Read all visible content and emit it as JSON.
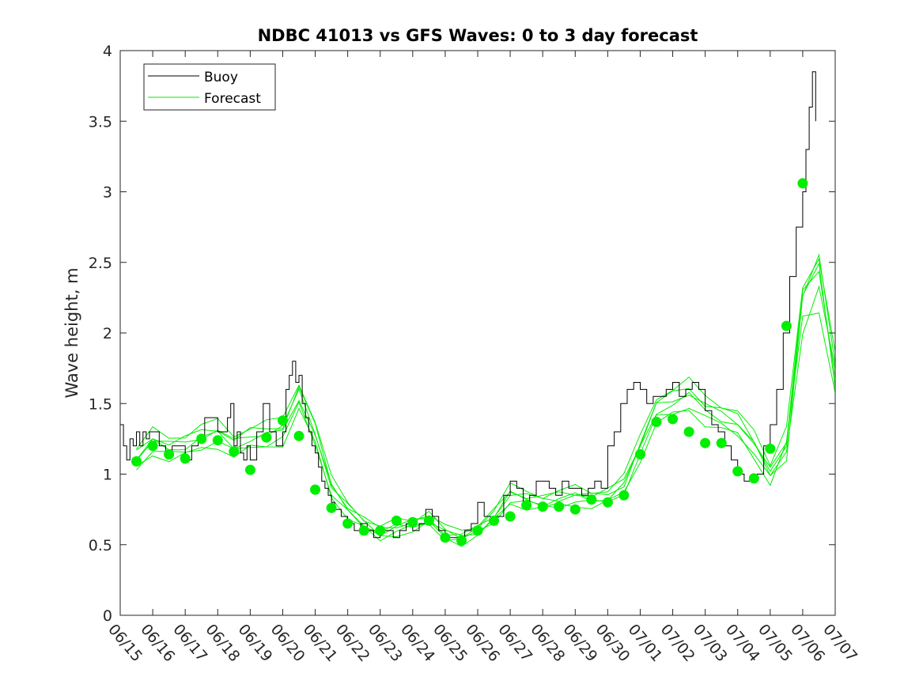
{
  "chart_data": {
    "type": "line",
    "title": "NDBC 41013 vs GFS Waves: 0 to 3 day forecast",
    "xlabel": "",
    "ylabel": "Wave height, m",
    "xlim": [
      0,
      22
    ],
    "ylim": [
      0,
      4
    ],
    "x_tick_labels": [
      "06/15",
      "06/16",
      "06/17",
      "06/18",
      "06/19",
      "06/20",
      "06/21",
      "06/22",
      "06/23",
      "06/24",
      "06/25",
      "06/26",
      "06/27",
      "06/28",
      "06/29",
      "06/30",
      "07/01",
      "07/02",
      "07/03",
      "07/04",
      "07/05",
      "07/06",
      "07/07"
    ],
    "y_ticks": [
      0,
      0.5,
      1,
      1.5,
      2,
      2.5,
      3,
      3.5,
      4
    ],
    "y_tick_labels": [
      "0",
      "0.5",
      "1",
      "1.5",
      "2",
      "2.5",
      "3",
      "3.5",
      "4"
    ],
    "legend_position": "top-left",
    "grid": false,
    "colors": {
      "buoy": "#000000",
      "forecast": "#00ee00"
    },
    "series": [
      {
        "name": "Buoy",
        "x": [
          0,
          0.1,
          0.2,
          0.3,
          0.4,
          0.5,
          0.6,
          0.7,
          0.8,
          0.9,
          1,
          1.2,
          1.4,
          1.6,
          1.8,
          2,
          2.2,
          2.4,
          2.6,
          2.8,
          3,
          3.2,
          3.3,
          3.4,
          3.5,
          3.6,
          3.7,
          3.8,
          3.9,
          4,
          4.2,
          4.4,
          4.6,
          4.8,
          5,
          5.1,
          5.2,
          5.3,
          5.4,
          5.5,
          5.6,
          5.7,
          5.8,
          5.9,
          6,
          6.1,
          6.2,
          6.3,
          6.4,
          6.5,
          6.6,
          6.8,
          7,
          7.2,
          7.4,
          7.6,
          7.8,
          8,
          8.2,
          8.4,
          8.6,
          8.8,
          9,
          9.2,
          9.4,
          9.6,
          9.8,
          10,
          10.2,
          10.4,
          10.6,
          10.8,
          11,
          11.2,
          11.4,
          11.6,
          11.8,
          12,
          12.2,
          12.4,
          12.6,
          12.8,
          13,
          13.2,
          13.4,
          13.6,
          13.8,
          14,
          14.2,
          14.4,
          14.6,
          14.8,
          15,
          15.2,
          15.4,
          15.6,
          15.8,
          16,
          16.2,
          16.4,
          16.6,
          16.8,
          17,
          17.2,
          17.4,
          17.6,
          17.8,
          18,
          18.2,
          18.4,
          18.6,
          18.8,
          19,
          19.2,
          19.4,
          19.6,
          19.8,
          20,
          20.2,
          20.4,
          20.6,
          20.8,
          21,
          21.1,
          21.2,
          21.3,
          21.4
        ],
        "y": [
          1.35,
          1.2,
          1.1,
          1.25,
          1.2,
          1.3,
          1.2,
          1.3,
          1.25,
          1.3,
          1.3,
          1.2,
          1.15,
          1.2,
          1.2,
          1.1,
          1.2,
          1.25,
          1.4,
          1.4,
          1.3,
          1.3,
          1.4,
          1.5,
          1.2,
          1.3,
          1.15,
          1.1,
          1.2,
          1.1,
          1.3,
          1.5,
          1.3,
          1.2,
          1.3,
          1.6,
          1.7,
          1.8,
          1.65,
          1.7,
          1.5,
          1.4,
          1.3,
          1.2,
          1.15,
          1.05,
          0.95,
          0.9,
          0.85,
          0.8,
          0.75,
          0.7,
          0.65,
          0.6,
          0.65,
          0.6,
          0.55,
          0.6,
          0.6,
          0.55,
          0.6,
          0.65,
          0.6,
          0.65,
          0.75,
          0.7,
          0.6,
          0.55,
          0.55,
          0.55,
          0.6,
          0.65,
          0.8,
          0.7,
          0.65,
          0.7,
          0.85,
          0.95,
          0.9,
          0.8,
          0.85,
          0.95,
          0.95,
          0.9,
          0.85,
          0.95,
          0.9,
          0.9,
          0.85,
          0.9,
          0.95,
          0.9,
          1.2,
          1.3,
          1.5,
          1.6,
          1.65,
          1.6,
          1.5,
          1.55,
          1.55,
          1.6,
          1.65,
          1.55,
          1.6,
          1.65,
          1.6,
          1.45,
          1.35,
          1.3,
          1.2,
          1.1,
          1.0,
          0.95,
          0.95,
          1.0,
          1.2,
          1.35,
          1.6,
          2.0,
          2.4,
          2.75,
          3.0,
          3.3,
          3.6,
          3.85,
          3.5
        ]
      },
      {
        "name": "Forecast",
        "x": [
          0.5,
          1,
          1.5,
          2,
          2.5,
          3,
          3.5,
          4,
          4.5,
          5,
          5.5,
          6,
          6.5,
          7,
          7.5,
          8,
          8.5,
          9,
          9.5,
          10,
          10.5,
          11,
          11.5,
          12,
          12.5,
          13,
          13.5,
          14,
          14.5,
          15,
          15.5,
          16,
          16.5,
          17,
          17.5,
          18,
          18.5,
          19,
          19.5,
          20,
          20.5,
          21,
          21.5,
          22
        ],
        "y": [
          1.1,
          1.22,
          1.18,
          1.2,
          1.25,
          1.28,
          1.2,
          1.25,
          1.27,
          1.3,
          1.55,
          1.28,
          0.9,
          0.75,
          0.65,
          0.58,
          0.62,
          0.64,
          0.68,
          0.58,
          0.55,
          0.6,
          0.7,
          0.85,
          0.82,
          0.8,
          0.82,
          0.84,
          0.82,
          0.84,
          0.92,
          1.18,
          1.45,
          1.5,
          1.55,
          1.45,
          1.4,
          1.35,
          1.2,
          1.0,
          1.2,
          2.2,
          2.4,
          1.7
        ]
      }
    ],
    "forecast_markers": {
      "name": "Forecast",
      "x": [
        0.5,
        1,
        1.5,
        2,
        2.5,
        3,
        3.5,
        4,
        4.5,
        5,
        5.5,
        6,
        6.5,
        7,
        7.5,
        8,
        8.5,
        9,
        9.5,
        10,
        10.5,
        11,
        11.5,
        12,
        12.5,
        13,
        13.5,
        14,
        14.5,
        15,
        15.5,
        16,
        16.5,
        17,
        17.5,
        18,
        18.5,
        19,
        19.5,
        20,
        20.5,
        21
      ],
      "y": [
        1.09,
        1.2,
        1.14,
        1.11,
        1.25,
        1.24,
        1.16,
        1.03,
        1.26,
        1.38,
        1.27,
        0.89,
        0.76,
        0.65,
        0.6,
        0.6,
        0.67,
        0.66,
        0.67,
        0.55,
        0.53,
        0.6,
        0.67,
        0.7,
        0.78,
        0.77,
        0.77,
        0.75,
        0.82,
        0.8,
        0.85,
        1.14,
        1.37,
        1.39,
        1.3,
        1.22,
        1.22,
        1.02,
        0.97,
        1.18,
        2.05,
        3.06
      ]
    }
  }
}
